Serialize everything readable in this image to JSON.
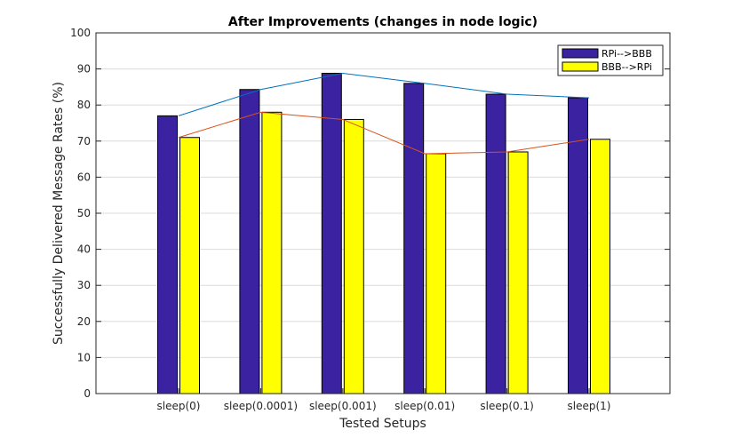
{
  "chart_data": {
    "type": "bar",
    "title": "After Improvements (changes in node logic)",
    "xlabel": "Tested Setups",
    "ylabel": "Successfully Delivered Message Rates (%)",
    "ylim": [
      0,
      100
    ],
    "yticks": [
      0,
      10,
      20,
      30,
      40,
      50,
      60,
      70,
      80,
      90,
      100
    ],
    "grid": "y-major",
    "legend_position": "top-right",
    "categories": [
      "sleep(0)",
      "sleep(0.0001)",
      "sleep(0.001)",
      "sleep(0.01)",
      "sleep(0.1)",
      "sleep(1)"
    ],
    "series": [
      {
        "name": "RPi-->BBB",
        "color": "#3a22a0",
        "line_color": "#0072bd",
        "values": [
          77,
          84.3,
          88.8,
          86,
          83,
          82
        ]
      },
      {
        "name": "BBB-->RPi",
        "color": "#ffff00",
        "line_color": "#d95319",
        "values": [
          71,
          78,
          76,
          66.5,
          67,
          70.5
        ]
      }
    ]
  }
}
